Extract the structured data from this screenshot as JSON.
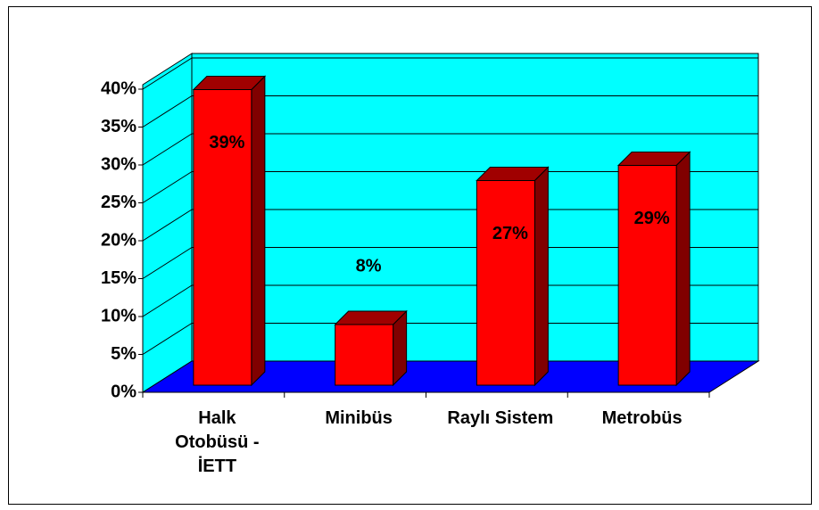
{
  "chart_data": {
    "type": "bar3d",
    "categories": [
      "Halk Otobüsü - İETT",
      "Minibüs",
      "Raylı Sistem",
      "Metrobüs"
    ],
    "values": [
      39,
      8,
      27,
      29
    ],
    "value_labels": [
      "39%",
      "8%",
      "27%",
      "29%"
    ],
    "color": "#ff0000",
    "ylim": [
      0,
      40
    ],
    "yticks": [
      {
        "value": 0,
        "label": "0%"
      },
      {
        "value": 5,
        "label": "5%"
      },
      {
        "value": 10,
        "label": "10%"
      },
      {
        "value": 15,
        "label": "15%"
      },
      {
        "value": 20,
        "label": "20%"
      },
      {
        "value": 25,
        "label": "25%"
      },
      {
        "value": 30,
        "label": "30%"
      },
      {
        "value": 35,
        "label": "35%"
      },
      {
        "value": 40,
        "label": "40%"
      }
    ],
    "grid": true
  }
}
